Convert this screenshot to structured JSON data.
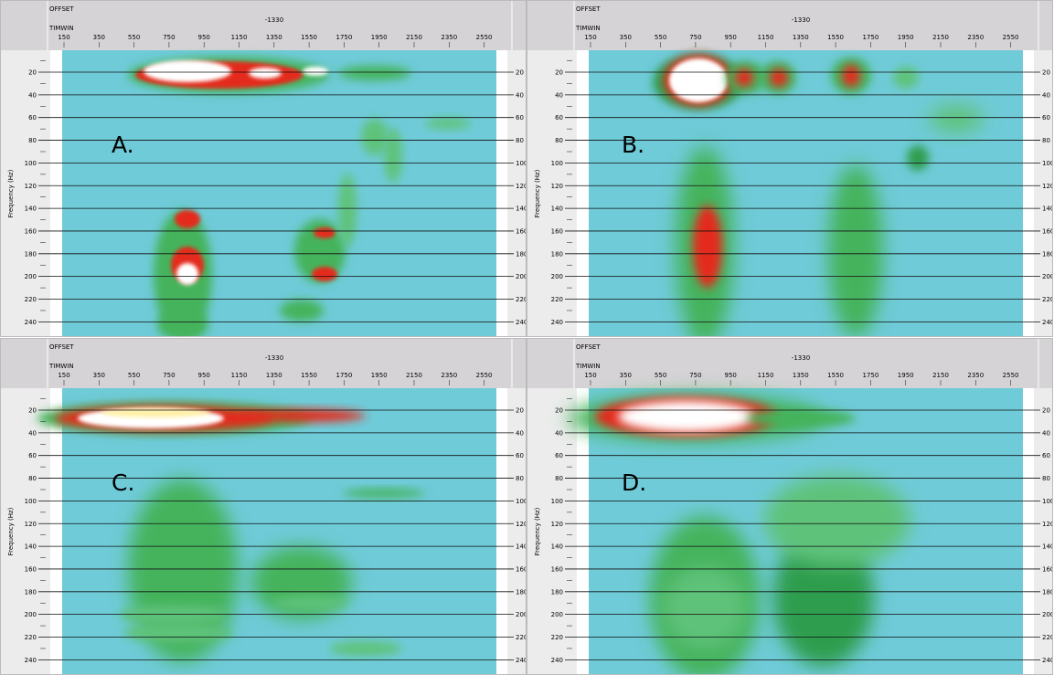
{
  "header": {
    "offset": "OFFSET",
    "timwin": "TIMWIN",
    "center": "-1330",
    "offsets": [
      "150",
      "350",
      "550",
      "750",
      "950",
      "1150",
      "1350",
      "1550",
      "1750",
      "1950",
      "2150",
      "2350",
      "2550"
    ]
  },
  "axis": {
    "title": "Frequency (Hz)",
    "frequencies": [
      "20",
      "40",
      "60",
      "80",
      "100",
      "120",
      "140",
      "160",
      "180",
      "200",
      "220",
      "240"
    ]
  },
  "panels": [
    {
      "label": "A."
    },
    {
      "label": "B."
    },
    {
      "label": "C."
    },
    {
      "label": "D."
    }
  ]
}
